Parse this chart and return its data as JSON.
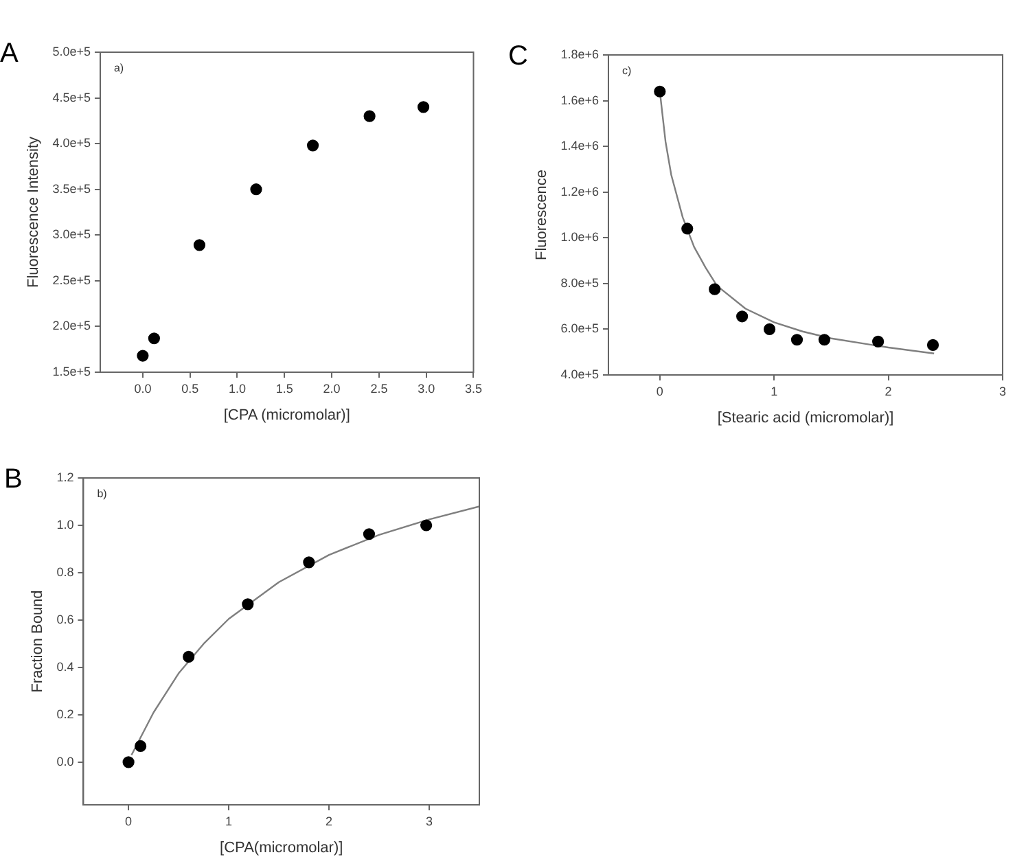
{
  "chart_data": [
    {
      "type": "scatter",
      "title": "A",
      "annotations": [
        "a)"
      ],
      "xlabel": "[CPA (micromolar)]",
      "ylabel": "Fluorescence Intensity",
      "xlim": [
        -0.45,
        3.5
      ],
      "ylim": [
        150000,
        500000
      ],
      "xticks": [
        {
          "value": 0,
          "label": "0.0"
        },
        {
          "value": 0.5,
          "label": "0.5"
        },
        {
          "value": 1,
          "label": "1.0"
        },
        {
          "value": 1.5,
          "label": "1.5"
        },
        {
          "value": 2,
          "label": "2.0"
        },
        {
          "value": 2.5,
          "label": "2.5"
        },
        {
          "value": 3,
          "label": "3.0"
        },
        {
          "value": 3.5,
          "label": "3.5"
        }
      ],
      "yticks": [
        {
          "value": 150000,
          "label": "1.5e+5"
        },
        {
          "value": 200000,
          "label": "2.0e+5"
        },
        {
          "value": 250000,
          "label": "2.5e+5"
        },
        {
          "value": 300000,
          "label": "3.0e+5"
        },
        {
          "value": 350000,
          "label": "3.5e+5"
        },
        {
          "value": 400000,
          "label": "4.0e+5"
        },
        {
          "value": 450000,
          "label": "4.5e+5"
        },
        {
          "value": 500000,
          "label": "5.0e+5"
        }
      ],
      "grid": false,
      "legend": false,
      "series": [
        {
          "color": "#000000",
          "marker": "circle",
          "x": [
            0,
            0.12,
            0.6,
            1.2,
            1.8,
            2.4,
            2.97
          ],
          "values": [
            168000,
            187000,
            289000,
            350000,
            398000,
            430000,
            440000
          ]
        }
      ]
    },
    {
      "type": "scatter",
      "title": "C",
      "annotations": [
        "c)"
      ],
      "xlabel": "[Stearic acid (micromolar)]",
      "ylabel": "Fluorescence",
      "xlim": [
        -0.45,
        3
      ],
      "ylim": [
        400000,
        1800000
      ],
      "xticks": [
        0,
        1,
        2,
        3
      ],
      "yticks": [
        {
          "value": 400000,
          "label": "4.0e+5"
        },
        {
          "value": 600000,
          "label": "6.0e+5"
        },
        {
          "value": 800000,
          "label": "8.0e+5"
        },
        {
          "value": 1000000,
          "label": "1.0e+6"
        },
        {
          "value": 1200000,
          "label": "1.2e+6"
        },
        {
          "value": 1400000,
          "label": "1.4e+6"
        },
        {
          "value": 1600000,
          "label": "1.6e+6"
        },
        {
          "value": 1800000,
          "label": "1.8e+6"
        }
      ],
      "grid": false,
      "legend": false,
      "series": [
        {
          "color": "#000000",
          "marker": "circle",
          "x": [
            0,
            0.24,
            0.48,
            0.72,
            0.96,
            1.2,
            1.44,
            1.91,
            2.39
          ],
          "values": [
            1640000,
            1040000,
            775000,
            656000,
            600000,
            554000,
            554000,
            546000,
            531000
          ]
        },
        {
          "type": "line",
          "marker": "none",
          "color": "#7f7f7f",
          "x": [
            0,
            0.05,
            0.1,
            0.2,
            0.3,
            0.4,
            0.5,
            0.75,
            1,
            1.25,
            1.5,
            2,
            2.4
          ],
          "values": [
            1640000,
            1420000,
            1275000,
            1090000,
            960000,
            870000,
            790000,
            690000,
            630000,
            590000,
            560000,
            520000,
            494000
          ]
        }
      ]
    },
    {
      "type": "scatter",
      "title": "B",
      "annotations": [
        "b)"
      ],
      "xlabel": "[CPA(micromolar)]",
      "ylabel": "Fraction Bound",
      "xlim": [
        -0.45,
        3.5
      ],
      "ylim": [
        -0.18,
        1.2
      ],
      "xticks": [
        0,
        1,
        2,
        3
      ],
      "yticks": [
        {
          "value": 0,
          "label": "0.0"
        },
        {
          "value": 0.2,
          "label": "0.2"
        },
        {
          "value": 0.4,
          "label": "0.4"
        },
        {
          "value": 0.6,
          "label": "0.6"
        },
        {
          "value": 0.8,
          "label": "0.8"
        },
        {
          "value": 1,
          "label": "1.0"
        },
        {
          "value": 1.2,
          "label": "1.2"
        }
      ],
      "grid": false,
      "legend": false,
      "series": [
        {
          "color": "#000000",
          "marker": "circle",
          "x": [
            0,
            0.12,
            0.6,
            1.19,
            1.8,
            2.4,
            2.97
          ],
          "values": [
            0,
            0.068,
            0.445,
            0.667,
            0.844,
            0.963,
            1.0
          ]
        },
        {
          "type": "line",
          "marker": "none",
          "color": "#7f7f7f",
          "x": [
            0.03,
            0.25,
            0.5,
            0.75,
            1,
            1.5,
            2,
            2.5,
            3,
            3.5
          ],
          "values": [
            0.03,
            0.21,
            0.375,
            0.5,
            0.605,
            0.76,
            0.875,
            0.96,
            1.025,
            1.08
          ]
        }
      ]
    }
  ]
}
